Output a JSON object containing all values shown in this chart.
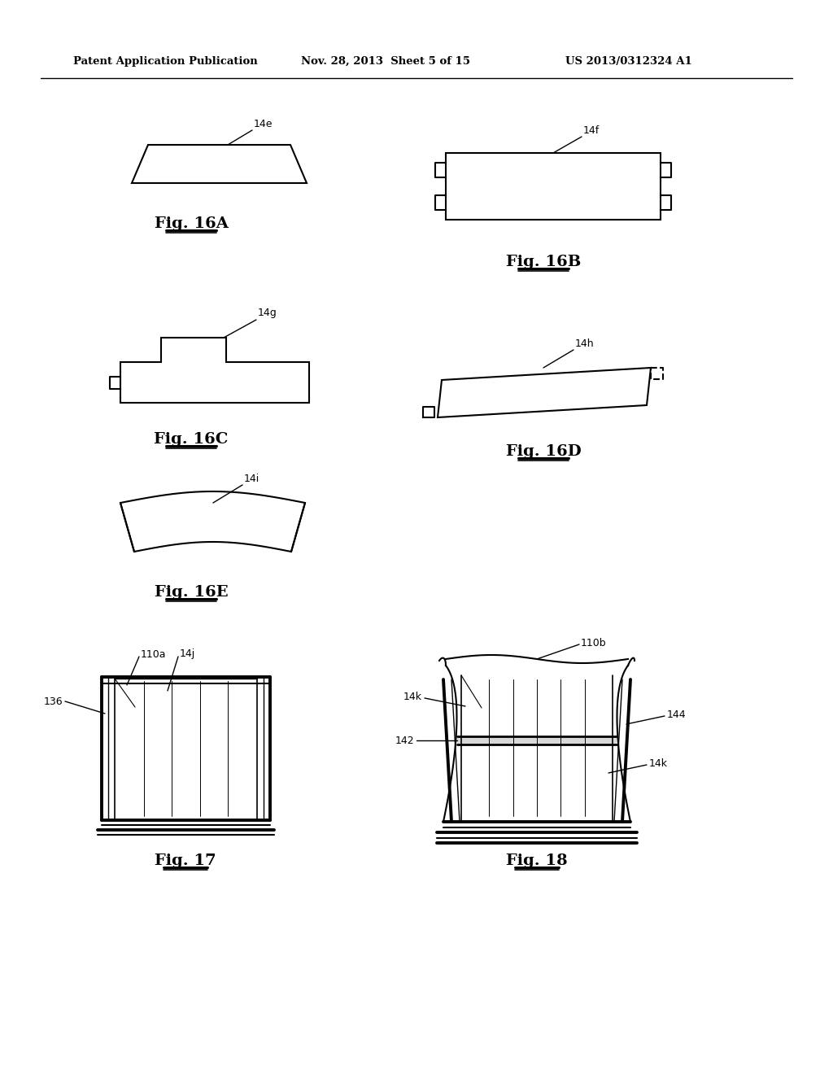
{
  "bg_color": "#ffffff",
  "header_left": "Patent Application Publication",
  "header_mid": "Nov. 28, 2013  Sheet 5 of 15",
  "header_right": "US 2013/0312324 A1",
  "line_color": "#000000",
  "text_color": "#000000"
}
